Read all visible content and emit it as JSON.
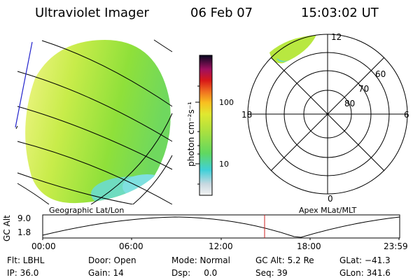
{
  "header": {
    "instrument": "Ultraviolet Imager",
    "date": "06 Feb 07",
    "time": "15:03:02 UT"
  },
  "colorbar": {
    "unit_label": "photon cm⁻²s⁻¹",
    "tick_100": "100",
    "tick_10": "10"
  },
  "polar_plot": {
    "labels": [
      "12",
      "18",
      "6",
      "0",
      "60",
      "70",
      "80"
    ]
  },
  "panel_labels": {
    "left": "Geographic Lat/Lon",
    "right": "Apex MLat/MLT"
  },
  "altitude_plot": {
    "ylabel": "GC Alt",
    "yticks": [
      "9.0",
      "1.8"
    ],
    "xticks": [
      "00:00",
      "06:00",
      "12:00",
      "18:00",
      "23:59"
    ]
  },
  "status": {
    "col1": [
      "Flt: LBHL",
      "IP: 36.0"
    ],
    "col2": [
      "Door: Open",
      "Gain: 14"
    ],
    "col3": [
      "Mode: Normal",
      "Dsp:     0.0"
    ],
    "col4": [
      "GC Alt: 5.2 Re",
      "Seq: 39"
    ],
    "col5": [
      "GLat: −41.3",
      "GLon: 341.6"
    ]
  }
}
